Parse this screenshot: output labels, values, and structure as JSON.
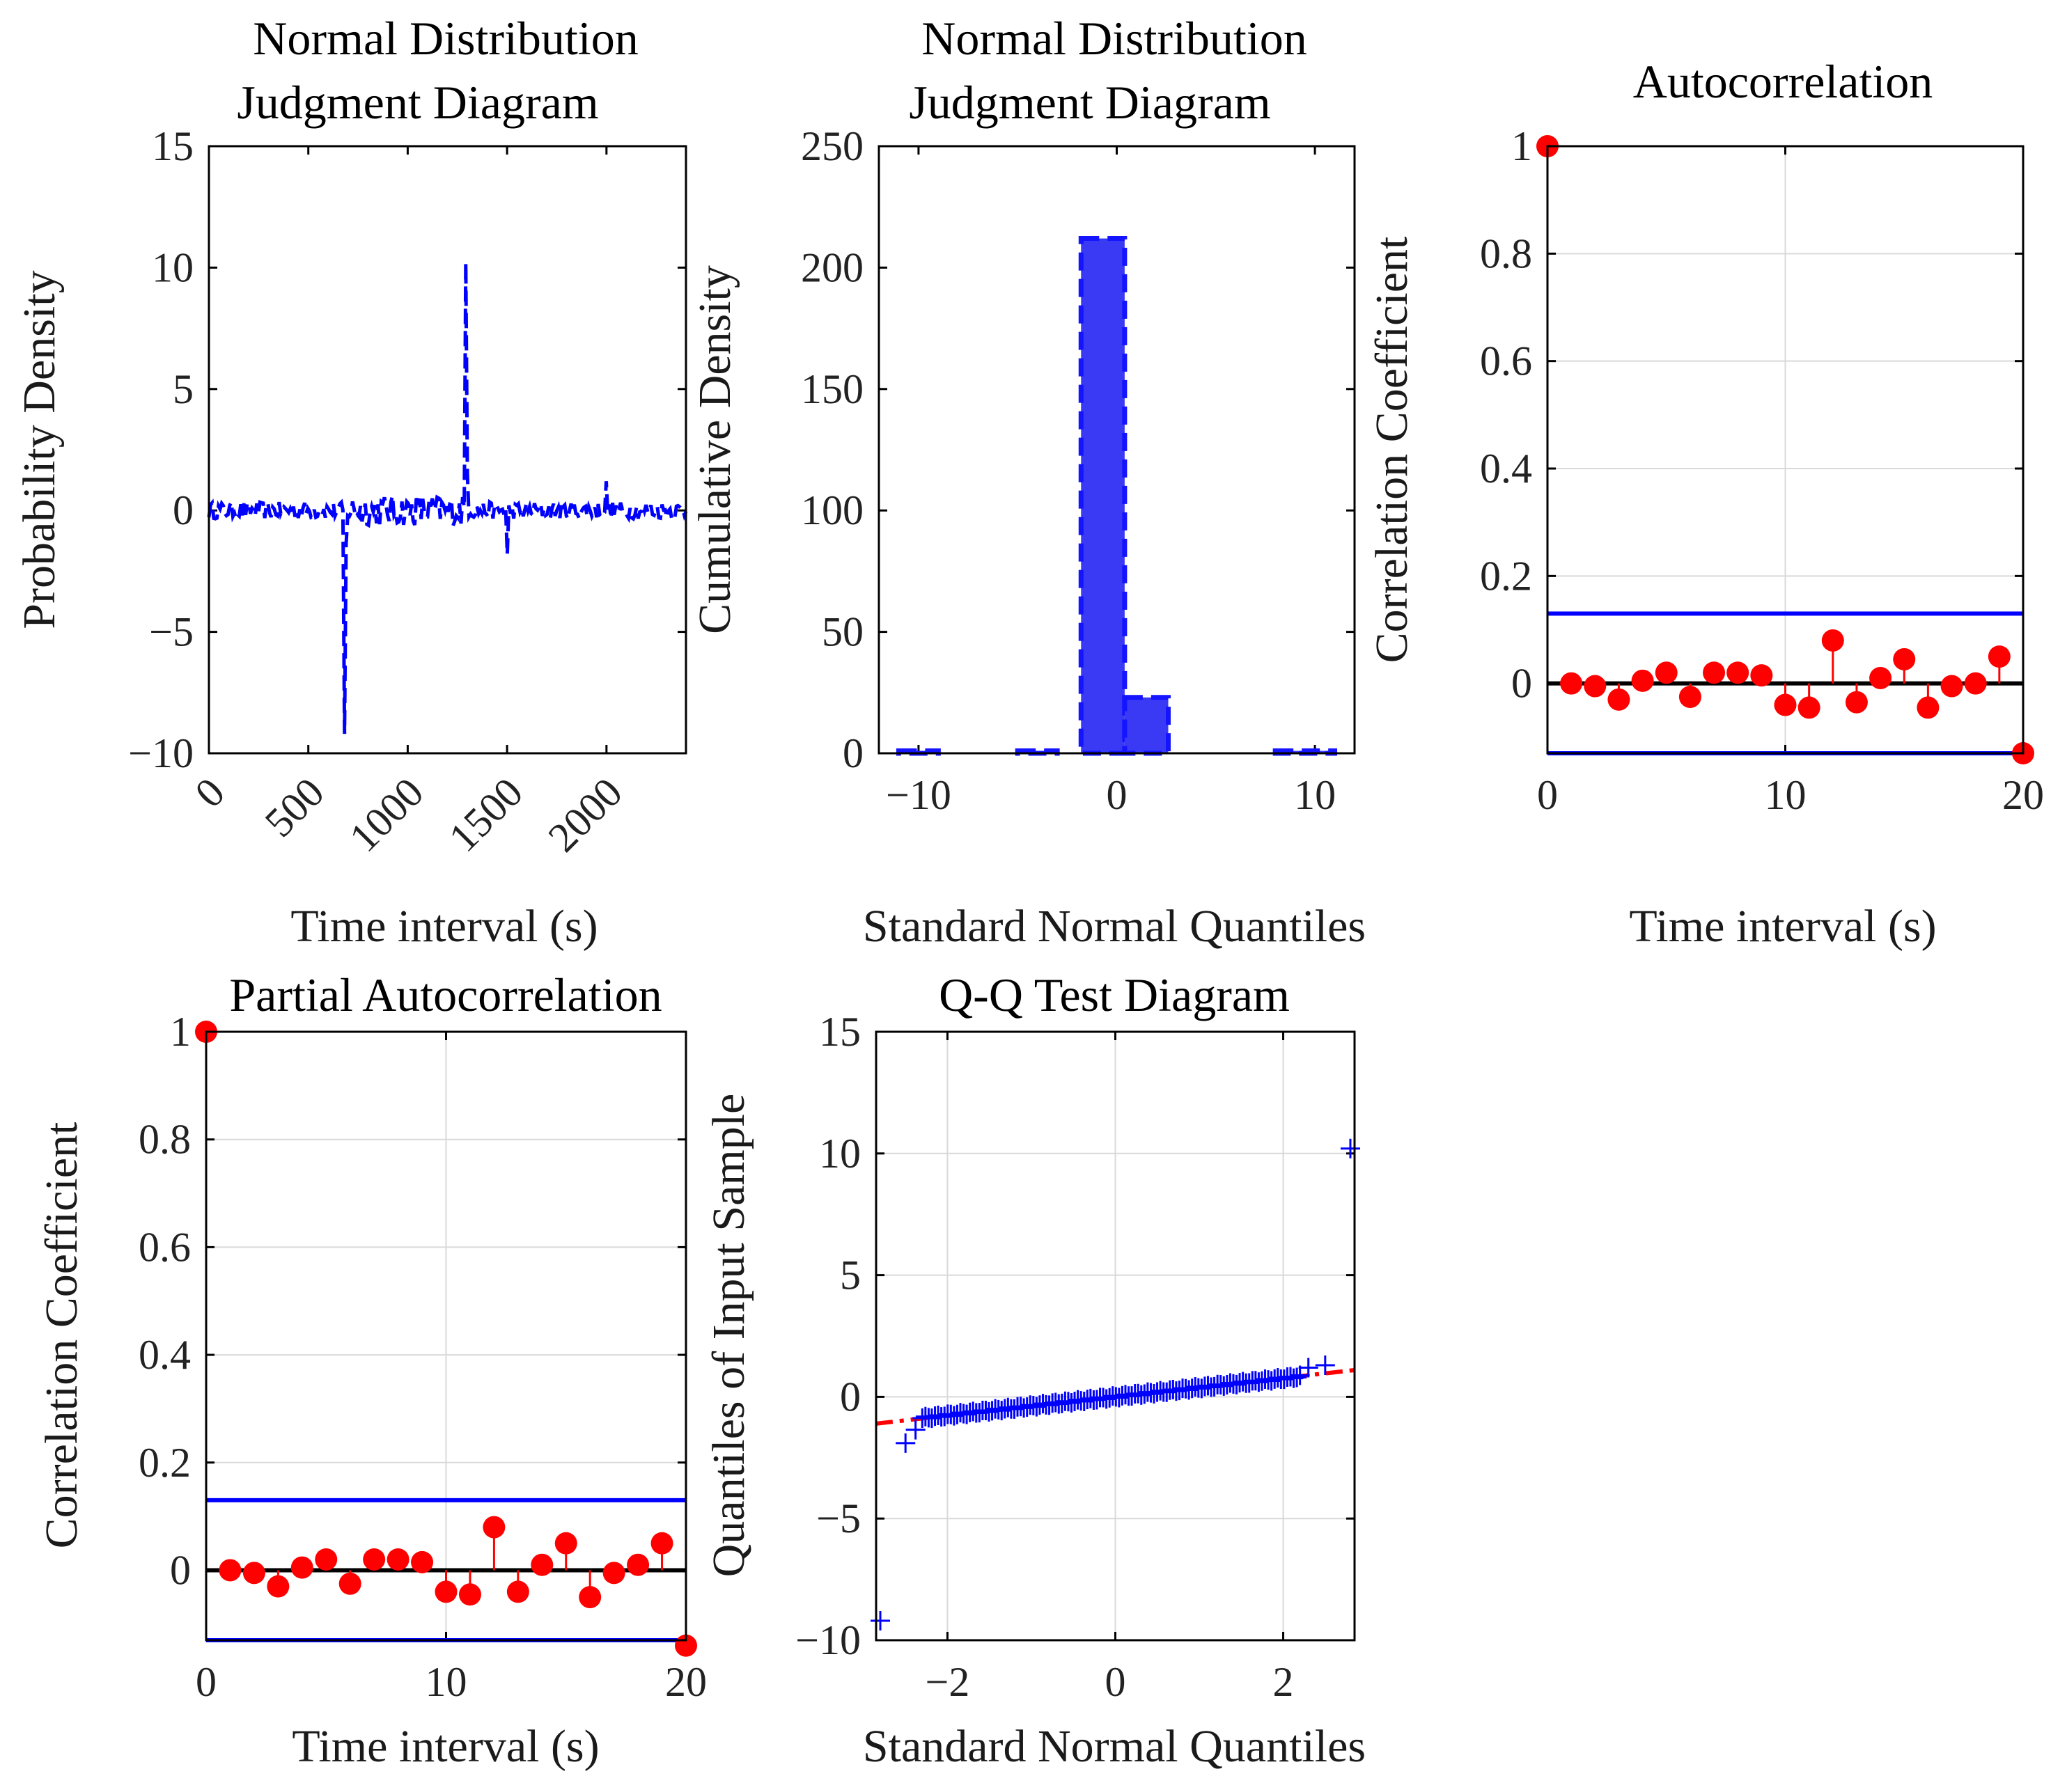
{
  "chart_data": [
    {
      "id": "p1",
      "type": "line",
      "title": [
        "Normal Distribution",
        "Judgment Diagram"
      ],
      "xlabel": "Time interval (s)",
      "ylabel": "Probability Density",
      "xlim": [
        0,
        2400
      ],
      "ylim": [
        -10,
        15
      ],
      "xticks": [
        0,
        500,
        1000,
        1500,
        2000
      ],
      "xtick_labels": [
        "0",
        "500",
        "1000",
        "1500",
        "2000"
      ],
      "yticks": [
        -10,
        -5,
        0,
        5,
        10,
        15
      ],
      "ytick_labels": [
        "−10",
        "−5",
        "0",
        "5",
        "10",
        "15"
      ],
      "grid": false,
      "line_color": "#0000ff",
      "line_style": "dashed",
      "description_points": {
        "noise_amplitude": 0.35,
        "spikes": [
          {
            "x": 680,
            "y": -9.2
          },
          {
            "x": 1290,
            "y": 10.2
          },
          {
            "x": 1500,
            "y": -1.8
          },
          {
            "x": 2000,
            "y": 1.2
          }
        ],
        "n_points": 300
      }
    },
    {
      "id": "p2",
      "type": "bar",
      "title": [
        "Normal Distribution",
        "Judgment Diagram"
      ],
      "xlabel": "Standard Normal Quantiles",
      "ylabel": "Cumulative Density",
      "xlim": [
        -12,
        12
      ],
      "ylim": [
        0,
        250
      ],
      "xticks": [
        -10,
        0,
        10
      ],
      "xtick_labels": [
        "−10",
        "0",
        "10"
      ],
      "yticks": [
        0,
        50,
        100,
        150,
        200,
        250
      ],
      "ytick_labels": [
        "0",
        "50",
        "100",
        "150",
        "200",
        "250"
      ],
      "grid": false,
      "bar_color": "#3a3af5",
      "bins": [
        {
          "from": -11,
          "to": -9,
          "value": 1
        },
        {
          "from": -9,
          "to": -7,
          "value": 0
        },
        {
          "from": -7,
          "to": -5,
          "value": 0
        },
        {
          "from": -5,
          "to": -3,
          "value": 1
        },
        {
          "from": -3,
          "to": -1.8,
          "value": 0
        },
        {
          "from": -1.8,
          "to": 0.4,
          "value": 212
        },
        {
          "from": 0.4,
          "to": 2.6,
          "value": 23
        },
        {
          "from": 2.6,
          "to": 5,
          "value": 0
        },
        {
          "from": 5,
          "to": 8,
          "value": 0
        },
        {
          "from": 8,
          "to": 11,
          "value": 1
        }
      ]
    },
    {
      "id": "p3",
      "type": "stem",
      "title": [
        "Autocorrelation"
      ],
      "xlabel": "Time interval (s)",
      "ylabel": "Correlation Coefficient",
      "xlim": [
        0,
        20
      ],
      "ylim": [
        -0.13,
        1
      ],
      "xticks": [
        0,
        10,
        20
      ],
      "xtick_labels": [
        "0",
        "10",
        "20"
      ],
      "yticks": [
        0,
        0.2,
        0.4,
        0.6,
        0.8,
        1
      ],
      "ytick_labels": [
        "0",
        "0.2",
        "0.4",
        "0.6",
        "0.8",
        "1"
      ],
      "grid": true,
      "lags": [
        0,
        1,
        2,
        3,
        4,
        5,
        6,
        7,
        8,
        9,
        10,
        11,
        12,
        13,
        14,
        15,
        16,
        17,
        18,
        19,
        20
      ],
      "values": [
        1,
        0.0,
        -0.005,
        -0.03,
        0.005,
        0.02,
        -0.025,
        0.02,
        0.02,
        0.015,
        -0.04,
        -0.045,
        0.08,
        -0.035,
        0.01,
        0.045,
        -0.045,
        -0.005,
        0.0,
        0.05,
        -0.13
      ],
      "conf_bounds": [
        0.13,
        -0.13
      ],
      "stem_color": "#ff0000",
      "bound_color": "#0000ff"
    },
    {
      "id": "p4",
      "type": "stem",
      "title": [
        "Partial Autocorrelation"
      ],
      "xlabel": "Time interval (s)",
      "ylabel": "Correlation Coefficient",
      "xlim": [
        0,
        20
      ],
      "ylim": [
        -0.13,
        1
      ],
      "xticks": [
        0,
        10,
        20
      ],
      "xtick_labels": [
        "0",
        "10",
        "20"
      ],
      "yticks": [
        0,
        0.2,
        0.4,
        0.6,
        0.8,
        1
      ],
      "ytick_labels": [
        "0",
        "0.2",
        "0.4",
        "0.6",
        "0.8",
        "1"
      ],
      "grid": true,
      "lags": [
        0,
        1,
        2,
        3,
        4,
        5,
        6,
        7,
        8,
        9,
        10,
        11,
        12,
        13,
        14,
        15,
        16,
        17,
        18,
        19,
        20
      ],
      "values": [
        1,
        0.0,
        -0.005,
        -0.03,
        0.005,
        0.02,
        -0.025,
        0.02,
        0.02,
        0.015,
        -0.04,
        -0.045,
        0.08,
        -0.04,
        0.01,
        0.05,
        -0.05,
        -0.005,
        0.01,
        0.05,
        -0.14
      ],
      "conf_bounds": [
        0.13,
        -0.13
      ],
      "stem_color": "#ff0000",
      "bound_color": "#0000ff"
    },
    {
      "id": "p5",
      "type": "scatter",
      "title": [
        "Q-Q Test Diagram"
      ],
      "xlabel": "Standard Normal Quantiles",
      "ylabel": "Quantiles of Input Sample",
      "xlim": [
        -2.85,
        2.85
      ],
      "ylim": [
        -10,
        15
      ],
      "xticks": [
        -2,
        0,
        2
      ],
      "xtick_labels": [
        "−2",
        "0",
        "2"
      ],
      "yticks": [
        -10,
        -5,
        0,
        5,
        10,
        15
      ],
      "ytick_labels": [
        "−10",
        "−5",
        "0",
        "5",
        "10",
        "15"
      ],
      "grid": true,
      "marker_color": "#0000ff",
      "ref_line_color": "#ff0000",
      "ref_line": {
        "x": [
          -2.85,
          2.85
        ],
        "y": [
          -1.1,
          1.1
        ]
      },
      "points_tail": [
        {
          "x": -2.8,
          "y": -9.2
        },
        {
          "x": -2.5,
          "y": -1.9
        },
        {
          "x": -2.38,
          "y": -1.35
        },
        {
          "x": 2.3,
          "y": 1.2
        },
        {
          "x": 2.5,
          "y": 1.3
        },
        {
          "x": 2.8,
          "y": 10.2
        }
      ],
      "n_points": 120,
      "slope": 0.38
    }
  ]
}
